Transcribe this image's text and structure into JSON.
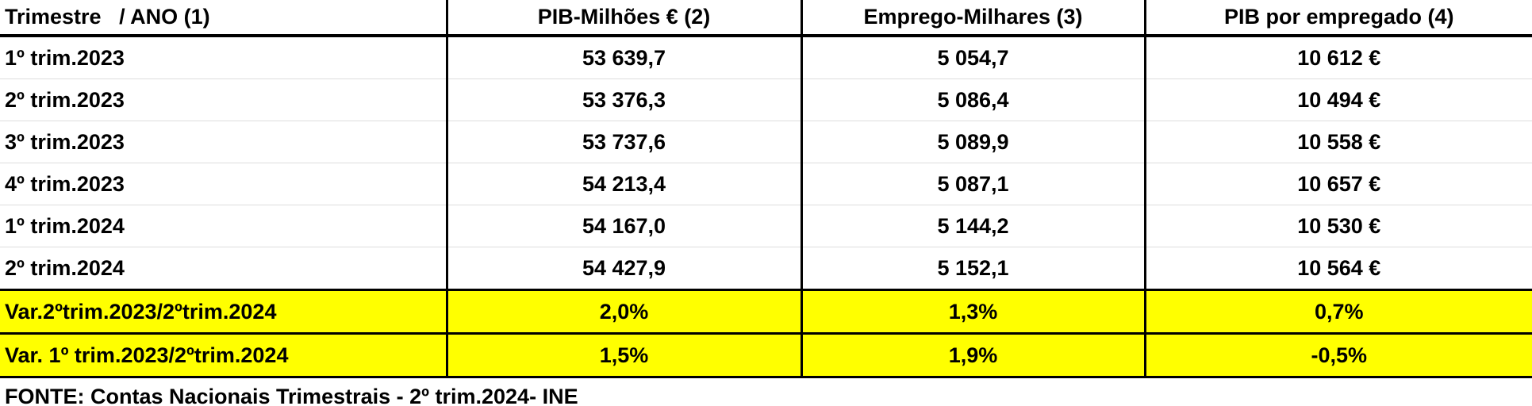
{
  "table": {
    "columns": [
      "Trimestre   / ANO (1)",
      "PIB-Milhões € (2)",
      "Emprego-Milhares (3)",
      "PIB por empregado (4)"
    ],
    "rows": [
      [
        "1º trim.2023",
        "53 639,7",
        "5 054,7",
        "10 612 €"
      ],
      [
        "2º trim.2023",
        "53 376,3",
        "5 086,4",
        "10 494 €"
      ],
      [
        "3º trim.2023",
        "53 737,6",
        "5 089,9",
        "10 558 €"
      ],
      [
        "4º trim.2023",
        "54 213,4",
        "5 087,1",
        "10 657 €"
      ],
      [
        "1º trim.2024",
        "54 167,0",
        "5 144,2",
        "10 530 €"
      ],
      [
        "2º trim.2024",
        "54 427,9",
        "5 152,1",
        "10 564 €"
      ]
    ],
    "variation_rows": [
      [
        "Var.2ºtrim.2023/2ºtrim.2024",
        "2,0%",
        "1,3%",
        "0,7%"
      ],
      [
        "Var. 1º trim.2023/2ºtrim.2024",
        "1,5%",
        "1,9%",
        "-0,5%"
      ]
    ]
  },
  "footer": "FONTE: Contas Nacionais Trimestrais - 2º trim.2024- INE"
}
